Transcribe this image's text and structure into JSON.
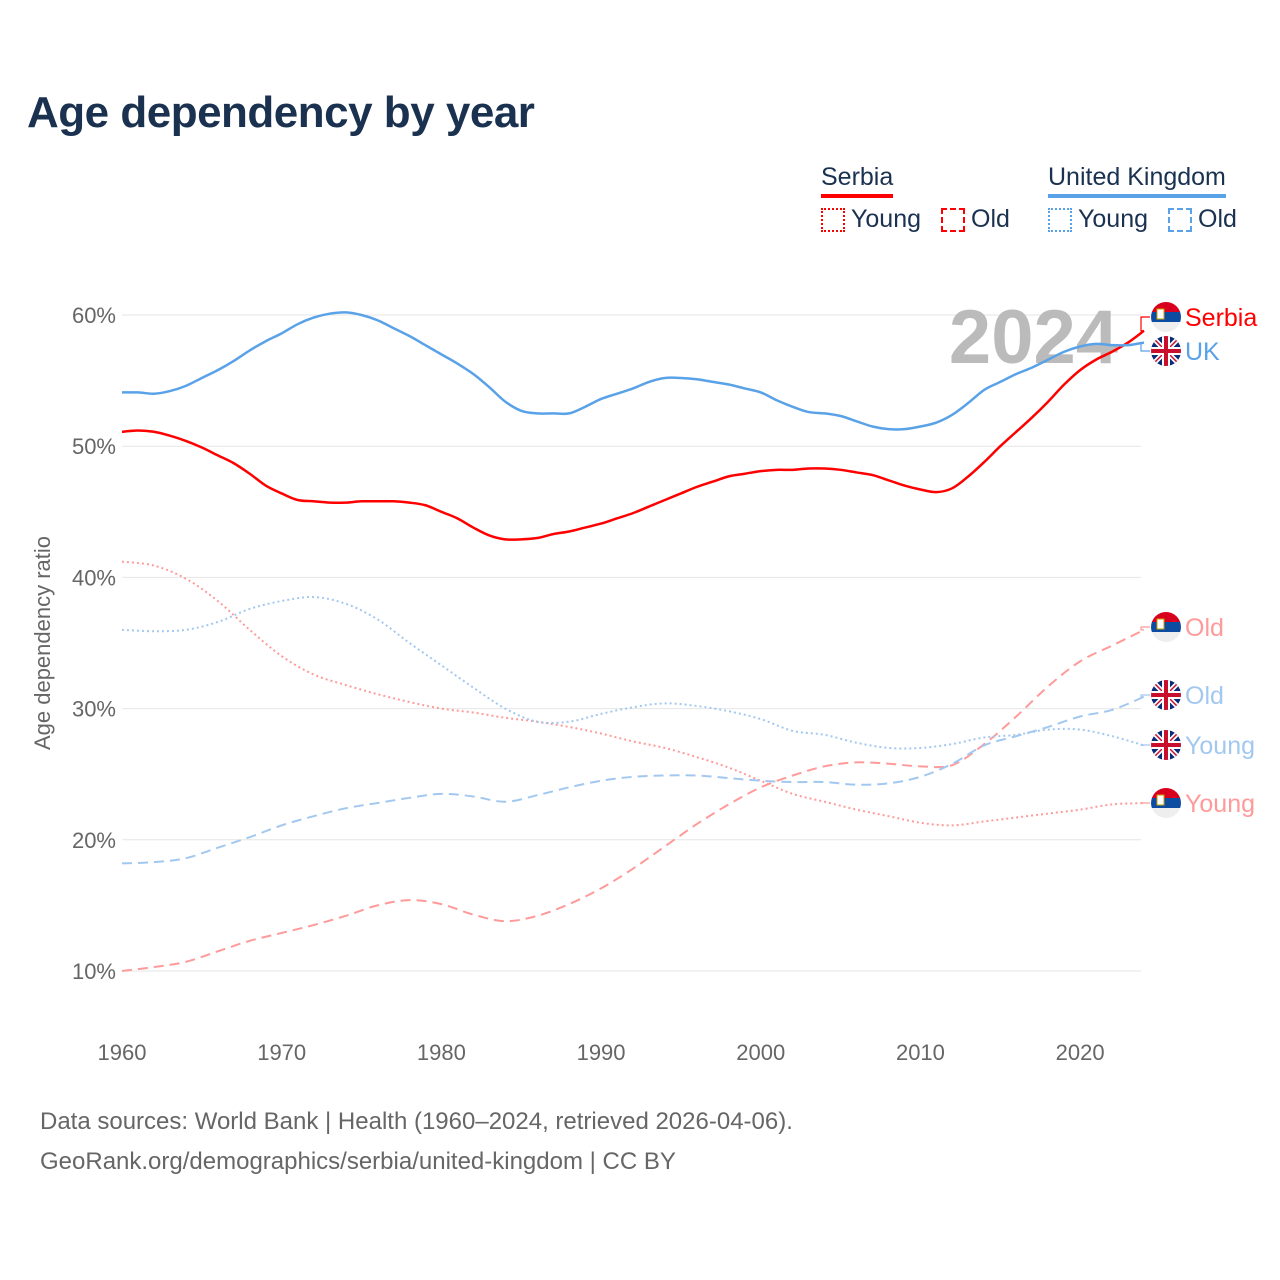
{
  "title": "Age dependency by year",
  "legend": {
    "groups": [
      {
        "name": "Serbia",
        "color": "#ff0000",
        "young_label": "Young",
        "old_label": "Old"
      },
      {
        "name": "United Kingdom",
        "color": "#5aa2e8",
        "young_label": "Young",
        "old_label": "Old"
      }
    ]
  },
  "footer": {
    "line1": "Data sources: World Bank | Health (1960–2024, retrieved 2026-04-06).",
    "line2": "GeoRank.org/demographics/serbia/united-kingdom | CC BY"
  },
  "chart_data": {
    "type": "line",
    "title": "Age dependency by year",
    "ylabel": "Age dependency ratio",
    "xlabel": "",
    "xlim": [
      1960,
      2024
    ],
    "ylim": [
      10,
      60
    ],
    "x_ticks": [
      "1960",
      "1970",
      "1980",
      "1990",
      "2000",
      "2010",
      "2020"
    ],
    "y_ticks": [
      "10%",
      "20%",
      "30%",
      "40%",
      "50%",
      "60%"
    ],
    "year_watermark": "2024",
    "grid": true,
    "legend_placement": "top-right",
    "series": [
      {
        "name": "Serbia",
        "end_label": "Serbia",
        "color": "#ff0000",
        "style": "solid",
        "x_start": 1960,
        "x_step": 1,
        "values": [
          51.1,
          51.2,
          51.1,
          50.8,
          50.4,
          49.9,
          49.3,
          48.7,
          47.9,
          47.0,
          46.4,
          45.9,
          45.8,
          45.7,
          45.7,
          45.8,
          45.8,
          45.8,
          45.7,
          45.5,
          45.0,
          44.5,
          43.8,
          43.2,
          42.9,
          42.9,
          43.0,
          43.3,
          43.5,
          43.8,
          44.1,
          44.5,
          44.9,
          45.4,
          45.9,
          46.4,
          46.9,
          47.3,
          47.7,
          47.9,
          48.1,
          48.2,
          48.2,
          48.3,
          48.3,
          48.2,
          48.0,
          47.8,
          47.4,
          47.0,
          46.7,
          46.5,
          46.8,
          47.7,
          48.8,
          50.0,
          51.1,
          52.2,
          53.4,
          54.7,
          55.8,
          56.6,
          57.2,
          57.9,
          58.8
        ]
      },
      {
        "name": "United Kingdom",
        "end_label": "UK",
        "color": "#5aa2e8",
        "style": "solid",
        "x_start": 1960,
        "x_step": 1,
        "values": [
          54.1,
          54.1,
          54.0,
          54.2,
          54.6,
          55.2,
          55.8,
          56.5,
          57.3,
          58.0,
          58.6,
          59.3,
          59.8,
          60.1,
          60.2,
          60.0,
          59.6,
          59.0,
          58.4,
          57.7,
          57.0,
          56.3,
          55.5,
          54.5,
          53.4,
          52.7,
          52.5,
          52.5,
          52.5,
          53.0,
          53.6,
          54.0,
          54.4,
          54.9,
          55.2,
          55.2,
          55.1,
          54.9,
          54.7,
          54.4,
          54.1,
          53.5,
          53.0,
          52.6,
          52.5,
          52.3,
          51.9,
          51.5,
          51.3,
          51.3,
          51.5,
          51.8,
          52.4,
          53.3,
          54.3,
          54.9,
          55.5,
          56.0,
          56.6,
          57.2,
          57.6,
          57.8,
          57.7,
          57.7,
          57.9
        ]
      },
      {
        "name": "Serbia Young",
        "end_label": "Young",
        "color": "#ff9a9a",
        "style": "dotted",
        "x_start": 1960,
        "x_step": 2,
        "values": [
          41.2,
          40.9,
          39.9,
          38.2,
          36.0,
          34.0,
          32.6,
          31.8,
          31.1,
          30.5,
          30.0,
          29.7,
          29.3,
          29.0,
          28.6,
          28.1,
          27.5,
          27.0,
          26.3,
          25.5,
          24.5,
          23.5,
          22.9,
          22.3,
          21.8,
          21.3,
          21.1,
          21.4,
          21.7,
          22.0,
          22.3,
          22.7,
          22.8
        ]
      },
      {
        "name": "Serbia Old",
        "end_label": "Old",
        "color": "#ff9a9a",
        "style": "dashed",
        "x_start": 1960,
        "x_step": 2,
        "values": [
          10.0,
          10.3,
          10.7,
          11.5,
          12.3,
          12.9,
          13.5,
          14.2,
          15.0,
          15.4,
          15.1,
          14.3,
          13.8,
          14.2,
          15.1,
          16.3,
          17.8,
          19.5,
          21.2,
          22.7,
          24.0,
          24.9,
          25.6,
          25.9,
          25.8,
          25.6,
          25.7,
          27.3,
          29.4,
          31.7,
          33.6,
          34.8,
          36.0
        ]
      },
      {
        "name": "United Kingdom Young",
        "end_label": "Young",
        "color": "#a3c8f0",
        "style": "dotted",
        "x_start": 1960,
        "x_step": 2,
        "values": [
          36.0,
          35.9,
          36.0,
          36.6,
          37.6,
          38.2,
          38.5,
          38.0,
          36.8,
          35.0,
          33.3,
          31.6,
          30.0,
          29.0,
          29.0,
          29.6,
          30.1,
          30.4,
          30.2,
          29.8,
          29.2,
          28.3,
          28.0,
          27.4,
          27.0,
          27.0,
          27.3,
          27.8,
          28.0,
          28.4,
          28.4,
          27.9,
          27.2
        ]
      },
      {
        "name": "United Kingdom Old",
        "end_label": "Old",
        "color": "#a3c8f0",
        "style": "dashed",
        "x_start": 1960,
        "x_step": 2,
        "values": [
          18.2,
          18.3,
          18.6,
          19.4,
          20.2,
          21.1,
          21.8,
          22.4,
          22.8,
          23.2,
          23.5,
          23.3,
          22.9,
          23.4,
          24.0,
          24.5,
          24.8,
          24.9,
          24.9,
          24.7,
          24.5,
          24.4,
          24.4,
          24.2,
          24.3,
          24.8,
          25.8,
          27.2,
          27.9,
          28.6,
          29.4,
          29.9,
          30.9
        ]
      }
    ]
  }
}
